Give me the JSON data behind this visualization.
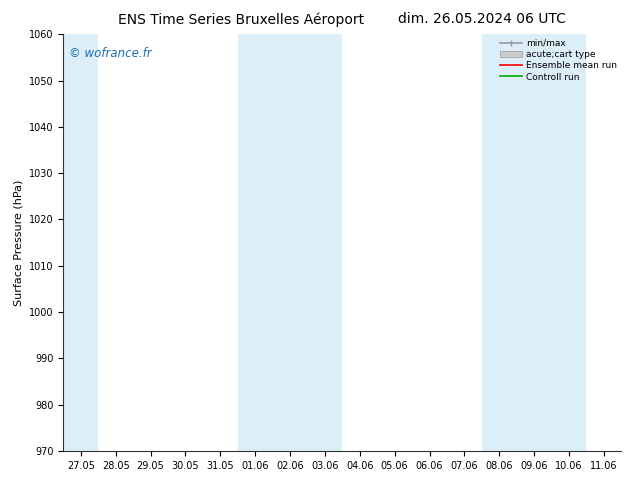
{
  "title_left": "ENS Time Series Bruxelles Aéroport",
  "title_right": "dim. 26.05.2024 06 UTC",
  "ylabel": "Surface Pressure (hPa)",
  "ylim": [
    970,
    1060
  ],
  "yticks": [
    970,
    980,
    990,
    1000,
    1010,
    1020,
    1030,
    1040,
    1050,
    1060
  ],
  "xtick_labels": [
    "27.05",
    "28.05",
    "29.05",
    "30.05",
    "31.05",
    "01.06",
    "02.06",
    "03.06",
    "04.06",
    "05.06",
    "06.06",
    "07.06",
    "08.06",
    "09.06",
    "10.06",
    "11.06"
  ],
  "watermark": "© wofrance.fr",
  "watermark_color": "#1a6eb5",
  "bg_color": "#ffffff",
  "plot_bg_color": "#ffffff",
  "band_color": "#dceef8",
  "legend_entries": [
    "min/max",
    "acute;cart type",
    "Ensemble mean run",
    "Controll run"
  ],
  "legend_line_colors": [
    "#999999",
    "#bbbbbb",
    "#ff0000",
    "#00aa00"
  ],
  "title_fontsize": 10,
  "tick_fontsize": 7,
  "ylabel_fontsize": 8,
  "band_ranges": [
    [
      0.0,
      1.0
    ],
    [
      5.0,
      8.0
    ],
    [
      12.0,
      15.0
    ]
  ]
}
